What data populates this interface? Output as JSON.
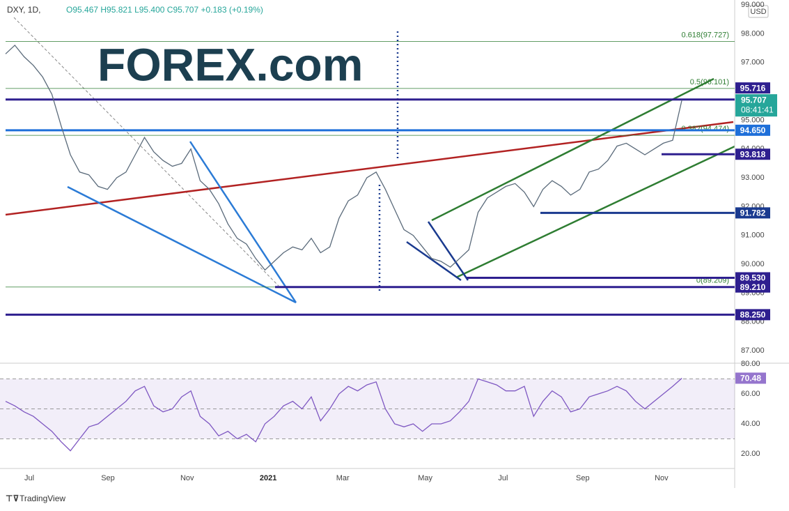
{
  "chart_data": [
    {
      "type": "line",
      "title": "DXY, 1D,",
      "subtitle": "O95.467 H95.821 L95.400 C95.707 +0.183 (+0.19%)",
      "watermark": "FOREX.com",
      "currency": "USD",
      "footer": "TradingView",
      "xlim": [
        -0.6,
        78.7
      ],
      "xticks": [
        {
          "value": 2.56,
          "label": "Jul"
        },
        {
          "value": 11.05,
          "label": "Sep"
        },
        {
          "value": 19.6,
          "label": "Nov"
        },
        {
          "value": 28.35,
          "label": "2021"
        },
        {
          "value": 36.4,
          "label": "Mar"
        },
        {
          "value": 45.3,
          "label": "May"
        },
        {
          "value": 53.7,
          "label": "Jul"
        },
        {
          "value": 62.3,
          "label": "Sep"
        },
        {
          "value": 70.8,
          "label": "Nov"
        }
      ],
      "ylim": [
        86.59,
        99.17
      ],
      "yticks": [
        {
          "value": 87,
          "label": "87.000"
        },
        {
          "value": 88,
          "label": "88.000"
        },
        {
          "value": 89,
          "label": "89.000"
        },
        {
          "value": 90,
          "label": "90.000"
        },
        {
          "value": 91,
          "label": "91.000"
        },
        {
          "value": 92,
          "label": "92.000"
        },
        {
          "value": 93,
          "label": "93.000"
        },
        {
          "value": 94,
          "label": "94.000"
        },
        {
          "value": 95,
          "label": "95.000"
        },
        {
          "value": 96,
          "label": "96.000"
        },
        {
          "value": 97,
          "label": "97.000"
        },
        {
          "value": 98,
          "label": "98.000"
        },
        {
          "value": 99,
          "label": "99.000"
        }
      ],
      "grid": false,
      "series": [
        {
          "name": "DXY",
          "color": "#5a6a7a",
          "values": [
            97.3,
            97.6,
            97.2,
            96.9,
            96.5,
            95.9,
            94.8,
            93.8,
            93.2,
            93.1,
            92.7,
            92.6,
            93.0,
            93.2,
            93.8,
            94.4,
            93.9,
            93.6,
            93.4,
            93.5,
            94.0,
            92.9,
            92.6,
            92.1,
            91.4,
            90.9,
            90.7,
            90.2,
            89.8,
            90.1,
            90.4,
            90.6,
            90.5,
            90.9,
            90.4,
            90.6,
            91.6,
            92.2,
            92.4,
            93.0,
            93.2,
            92.6,
            91.9,
            91.2,
            91.0,
            90.6,
            90.2,
            90.1,
            89.9,
            90.2,
            90.5,
            91.8,
            92.3,
            92.5,
            92.7,
            92.8,
            92.5,
            92.0,
            92.6,
            92.9,
            92.7,
            92.4,
            92.6,
            93.2,
            93.3,
            93.6,
            94.1,
            94.2,
            94.0,
            93.8,
            94.0,
            94.2,
            94.3,
            95.7
          ]
        }
      ],
      "fib_levels": [
        {
          "value": 97.727,
          "label": "0.618(97.727)"
        },
        {
          "value": 96.101,
          "label": "0.5(96.101)"
        },
        {
          "value": 94.474,
          "label": "0.382(94.474)"
        },
        {
          "value": 89.209,
          "label": "0(89.209)"
        }
      ],
      "levels": [
        {
          "value": 95.716,
          "label": "95.716",
          "color": "#2e1f8f"
        },
        {
          "value": 94.65,
          "label": "94.650",
          "color": "#1e6fd9"
        },
        {
          "value": 93.818,
          "label": "93.818",
          "color": "#2e1f8f"
        },
        {
          "value": 91.782,
          "label": "91.782",
          "color": "#1a3a8f"
        },
        {
          "value": 89.53,
          "label": "89.530",
          "color": "#2e1f8f"
        },
        {
          "value": 89.21,
          "label": "89.210",
          "color": "#2e1f8f"
        },
        {
          "value": 88.25,
          "label": "88.250",
          "color": "#2e1f8f"
        }
      ],
      "last_price": {
        "value": 95.707,
        "label": "95.707"
      },
      "countdown": "08:41:41"
    },
    {
      "type": "line",
      "xlim": [
        -0.6,
        78.7
      ],
      "ylim": [
        10.2,
        80
      ],
      "yticks": [
        {
          "value": 20,
          "label": "20.00"
        },
        {
          "value": 40,
          "label": "40.00"
        },
        {
          "value": 60,
          "label": "60.00"
        },
        {
          "value": 80,
          "label": "80.00"
        }
      ],
      "bands": [
        70,
        50,
        30
      ],
      "series": [
        {
          "name": "RSI",
          "color": "#7e57c2",
          "values": [
            55,
            52,
            48,
            45,
            40,
            35,
            28,
            22,
            30,
            38,
            40,
            45,
            50,
            55,
            62,
            65,
            52,
            48,
            50,
            58,
            62,
            45,
            40,
            32,
            35,
            30,
            33,
            28,
            40,
            45,
            52,
            55,
            50,
            58,
            42,
            50,
            60,
            65,
            62,
            66,
            68,
            50,
            40,
            38,
            40,
            35,
            40,
            40,
            42,
            48,
            55,
            70,
            68,
            66,
            62,
            62,
            65,
            45,
            55,
            62,
            58,
            48,
            50,
            58,
            60,
            62,
            65,
            62,
            55,
            50,
            55,
            60,
            65,
            70.48
          ]
        }
      ]
    }
  ]
}
